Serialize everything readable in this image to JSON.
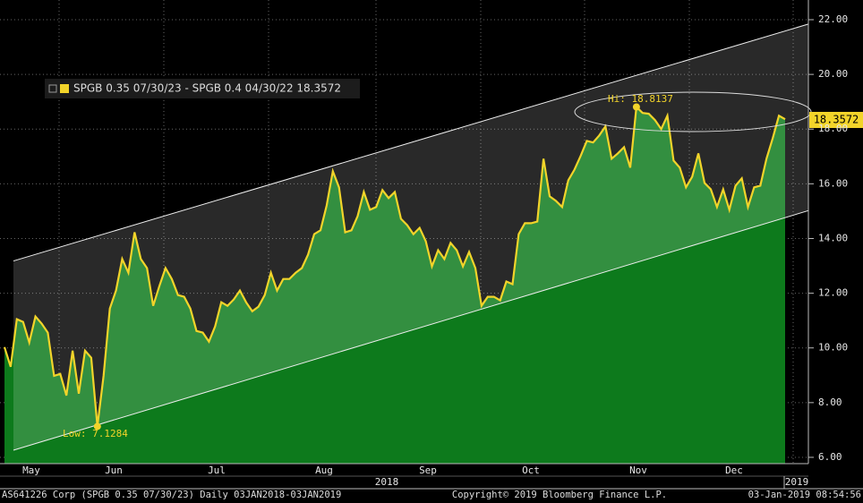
{
  "chart_data": {
    "type": "area",
    "legend": "SPGB 0.35 07/30/23 - SPGB 0.4 04/30/22 18.3572",
    "series": [
      {
        "name": "SPGB 0.35 07/30/23 - SPGB 0.4 04/30/22",
        "color": "#f2d42a",
        "values": [
          10.03,
          9.31,
          11.05,
          10.95,
          10.2,
          11.15,
          10.89,
          10.56,
          8.98,
          9.05,
          8.26,
          9.9,
          8.33,
          9.9,
          9.64,
          7.13,
          8.98,
          11.44,
          12.1,
          13.25,
          12.75,
          14.23,
          13.25,
          12.92,
          11.54,
          12.26,
          12.92,
          12.52,
          11.93,
          11.87,
          11.44,
          10.62,
          10.56,
          10.23,
          10.79,
          11.67,
          11.54,
          11.77,
          12.1,
          11.67,
          11.34,
          11.51,
          11.93,
          12.75,
          12.1,
          12.52,
          12.52,
          12.75,
          12.92,
          13.41,
          14.16,
          14.3,
          15.21,
          16.46,
          15.87,
          14.23,
          14.3,
          14.82,
          15.7,
          15.05,
          15.15,
          15.77,
          15.48,
          15.7,
          14.72,
          14.49,
          14.16,
          14.39,
          13.9,
          12.98,
          13.57,
          13.25,
          13.84,
          13.57,
          12.98,
          13.51,
          12.92,
          11.54,
          11.87,
          11.87,
          11.74,
          12.43,
          12.33,
          14.16,
          14.56,
          14.56,
          14.62,
          16.92,
          15.54,
          15.38,
          15.15,
          16.13,
          16.52,
          17.02,
          17.57,
          17.51,
          17.77,
          18.1,
          16.92,
          17.11,
          17.34,
          16.59,
          18.81,
          18.59,
          18.56,
          18.33,
          18.0,
          18.49,
          16.85,
          16.59,
          15.87,
          16.26,
          17.11,
          16.03,
          15.8,
          15.15,
          15.8,
          15.05,
          15.93,
          16.2,
          15.15,
          15.87,
          15.93,
          16.92,
          17.67,
          18.49,
          18.36
        ]
      }
    ],
    "channel": {
      "upper": [
        13.18,
        21.84
      ],
      "lower": [
        6.26,
        15.02
      ]
    },
    "high_label": "Hi: 18.8137",
    "low_label": "Low: 7.1284",
    "last_label": "18.3572",
    "months": [
      "May",
      "Jun",
      "Jul",
      "Aug",
      "Sep",
      "Oct",
      "Nov",
      "Dec"
    ],
    "years": [
      "2018",
      "2019"
    ],
    "ylim": [
      5.77,
      22.72
    ],
    "yticks": [
      {
        "value": 6,
        "label": "6.00"
      },
      {
        "value": 8,
        "label": "8.00"
      },
      {
        "value": 10,
        "label": "10.00"
      },
      {
        "value": 12,
        "label": "12.00"
      },
      {
        "value": 14,
        "label": "14.00"
      },
      {
        "value": 16,
        "label": "16.00"
      },
      {
        "value": 18,
        "label": "18.00"
      },
      {
        "value": 20,
        "label": "20.00"
      },
      {
        "value": 22,
        "label": "22.00"
      }
    ],
    "grid": true,
    "footer": {
      "left": "AS641226 Corp (SPGB 0.35 07/30/23)  Daily 03JAN2018-03JAN2019",
      "center": "Copyright© 2019 Bloomberg Finance L.P.",
      "right": "03-Jan-2019 08:54:56"
    }
  }
}
